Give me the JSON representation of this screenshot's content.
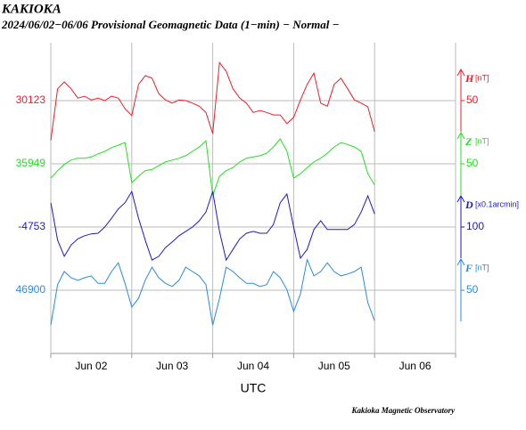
{
  "chart_data": {
    "type": "line",
    "title": "KAKIOKA",
    "subtitle": "2024/06/02−06/06  Provisional Geomagnetic Data (1−min)  − Normal −",
    "x_label": "UTC",
    "footer": "Kakioka Magnetic Observatory",
    "x": [
      0,
      2,
      4,
      6,
      8,
      10,
      12,
      14,
      16,
      18,
      20,
      22,
      24,
      26,
      28,
      30,
      32,
      34,
      36,
      38,
      40,
      42,
      44,
      46,
      48,
      50,
      52,
      54,
      56,
      58,
      60,
      62,
      64,
      66,
      68,
      70,
      72,
      74,
      76,
      78,
      80,
      82,
      84,
      86,
      88,
      90,
      92,
      94,
      96
    ],
    "xlim": [
      0,
      120
    ],
    "xticks": [
      {
        "value": 12,
        "label": "Jun 02"
      },
      {
        "value": 36,
        "label": "Jun 03"
      },
      {
        "value": 60,
        "label": "Jun 04"
      },
      {
        "value": 84,
        "label": "Jun 05"
      },
      {
        "value": 108,
        "label": "Jun 06"
      }
    ],
    "xgrid": [
      0,
      24,
      48,
      72,
      96,
      120
    ],
    "grid": true,
    "series": [
      {
        "name": "H",
        "unit": "[nT]",
        "color": "#e8202a",
        "baseline": 30123,
        "ylim": [
          0,
          100
        ],
        "yticks": [
          50
        ],
        "values": [
          -14,
          69,
          80,
          69,
          54,
          57,
          51,
          54,
          50,
          57,
          54,
          37,
          26,
          76,
          90,
          86,
          61,
          51,
          46,
          51,
          50,
          46,
          41,
          31,
          -3,
          111,
          97,
          69,
          54,
          46,
          31,
          34,
          31,
          27,
          27,
          13,
          23,
          51,
          76,
          94,
          46,
          41,
          76,
          86,
          69,
          51,
          46,
          40,
          0
        ]
      },
      {
        "name": "Z",
        "unit": "[nT]",
        "color": "#22e022",
        "baseline": 35949,
        "ylim": [
          0,
          100
        ],
        "yticks": [
          50
        ],
        "values": [
          27,
          39,
          49,
          56,
          59,
          59,
          61,
          66,
          70,
          76,
          80,
          84,
          20,
          30,
          39,
          41,
          47,
          53,
          56,
          59,
          63,
          70,
          77,
          87,
          -1,
          30,
          39,
          44,
          53,
          59,
          61,
          63,
          67,
          77,
          90,
          70,
          27,
          34,
          44,
          53,
          59,
          67,
          77,
          84,
          81,
          77,
          70,
          34,
          16
        ]
      },
      {
        "name": "D",
        "unit": "[x0.1arcmin]",
        "color": "#1a1ac8",
        "baseline": -4753,
        "ylim": [
          50,
          150
        ],
        "yticks": [
          100
        ],
        "values": [
          139,
          79,
          53,
          71,
          81,
          86,
          89,
          90,
          100,
          114,
          129,
          139,
          157,
          114,
          79,
          47,
          53,
          67,
          76,
          86,
          93,
          100,
          110,
          124,
          157,
          93,
          47,
          64,
          81,
          90,
          93,
          90,
          90,
          104,
          139,
          153,
          100,
          50,
          64,
          96,
          110,
          96,
          96,
          96,
          96,
          104,
          124,
          150,
          121
        ]
      },
      {
        "name": "F",
        "unit": "[nT]",
        "color": "#2a8ae0",
        "baseline": 46900,
        "ylim": [
          0,
          100
        ],
        "yticks": [
          50
        ],
        "values": [
          -6,
          59,
          80,
          70,
          66,
          70,
          73,
          61,
          61,
          80,
          94,
          61,
          23,
          37,
          66,
          87,
          70,
          61,
          56,
          66,
          87,
          80,
          73,
          59,
          -6,
          37,
          87,
          80,
          70,
          61,
          61,
          56,
          59,
          80,
          70,
          51,
          16,
          44,
          99,
          73,
          80,
          94,
          80,
          73,
          76,
          80,
          87,
          30,
          1
        ]
      }
    ]
  }
}
